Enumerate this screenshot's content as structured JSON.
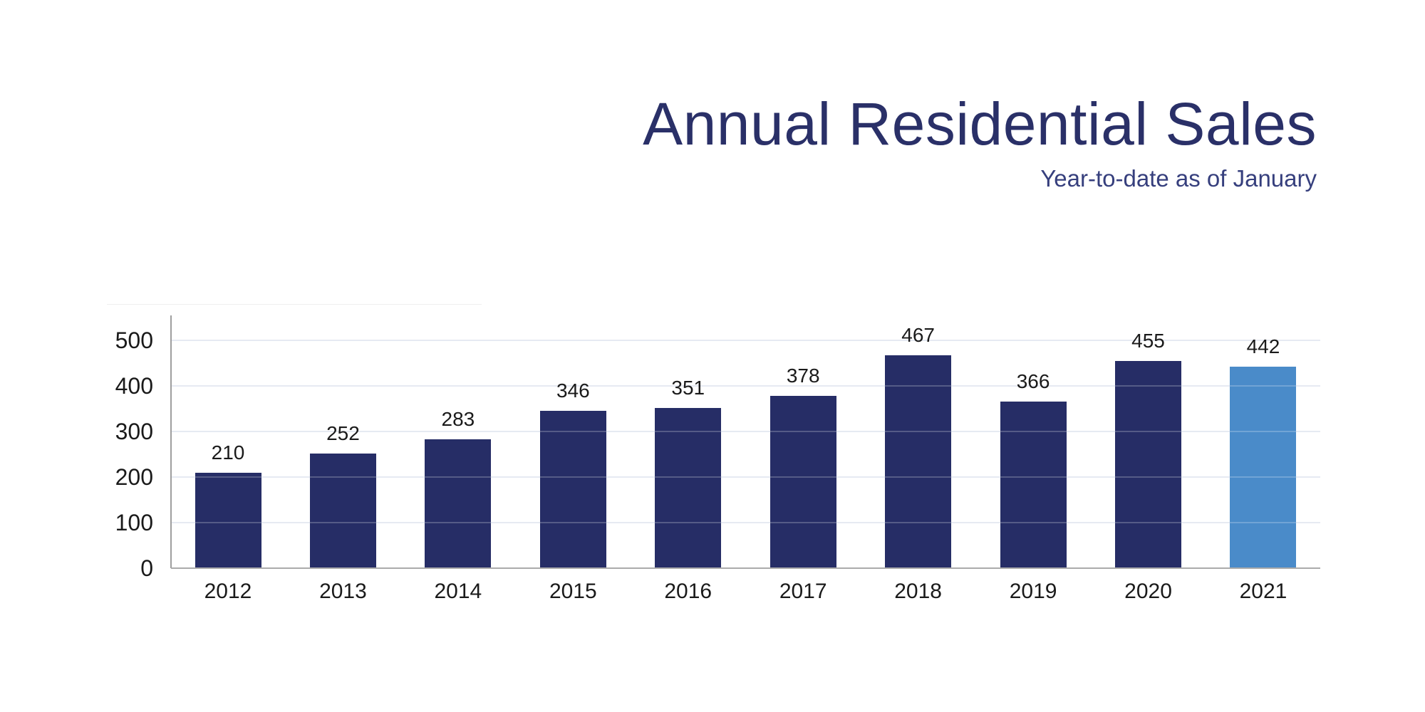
{
  "chart_data": {
    "type": "bar",
    "title": "Annual Residential Sales",
    "subtitle": "Year-to-date as of January",
    "categories": [
      "2012",
      "2013",
      "2014",
      "2015",
      "2016",
      "2017",
      "2018",
      "2019",
      "2020",
      "2021"
    ],
    "values": [
      210,
      252,
      283,
      346,
      351,
      378,
      467,
      366,
      455,
      442
    ],
    "highlight_index": 9,
    "highlight_category": "2021",
    "y_ticks": [
      0,
      100,
      200,
      300,
      400,
      500
    ],
    "ylim": [
      0,
      555
    ],
    "xlabel": "",
    "ylabel": "",
    "grid": "horizontal",
    "legend": "none",
    "colors": {
      "bar": "#262d66",
      "highlight_bar": "#4a8bc9",
      "title_text": "#2a3068",
      "subtitle_text": "#363f7d",
      "gridline": "#dfe5ef",
      "gridline_over_bar": "rgba(255,255,255,0.22)",
      "y_axis_line": "#9e9e9e",
      "x_axis_line": "#ababab",
      "tick_label": "#1a1a1a",
      "value_label": "#1a1a1a"
    }
  }
}
